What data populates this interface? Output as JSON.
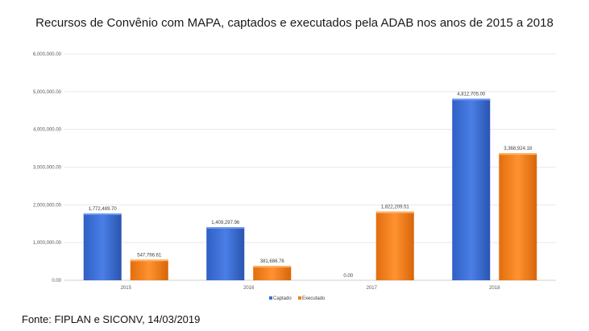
{
  "chart_data": {
    "type": "bar",
    "title": "Recursos de Convênio com MAPA, captados e executados pela ADAB nos anos de 2015 a 2018",
    "categories": [
      "2015",
      "2016",
      "2017",
      "2018"
    ],
    "series": [
      {
        "name": "Captado",
        "values": [
          1772489.7,
          1409297.96,
          0.0,
          4812705.0
        ],
        "labels": [
          "1,772,489.70",
          "1,409,297.96",
          "0.00",
          "4,812,705.00"
        ],
        "color": "#3b6fd8"
      },
      {
        "name": "Executado",
        "values": [
          547796.61,
          381686.76,
          1822209.51,
          3368924.18
        ],
        "labels": [
          "547,796.61",
          "381,686.76",
          "1,822,209.51",
          "3,368,924.18"
        ],
        "color": "#f07f1a"
      }
    ],
    "ylim": [
      0,
      6000000
    ],
    "yticks": [
      0,
      1000000,
      2000000,
      3000000,
      4000000,
      5000000,
      6000000
    ],
    "ytick_labels": [
      "0.00",
      "1,000,000.00",
      "2,000,000.00",
      "3,000,000.00",
      "4,000,000.00",
      "5,000,000.00",
      "6,000,000.00"
    ],
    "xlabel": "",
    "ylabel": "",
    "grid": true,
    "legend": "bottom-center"
  },
  "footer": {
    "source": "Fonte: FIPLAN e SICONV, 14/03/2019"
  }
}
